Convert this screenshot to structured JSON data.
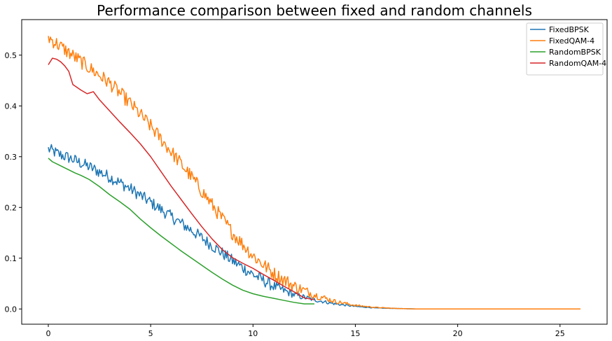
{
  "chart_data": {
    "type": "line",
    "title": "Performance comparison between fixed and random channels",
    "xlabel": "",
    "ylabel": "",
    "xlim": [
      -1.3,
      27.3
    ],
    "ylim": [
      -0.03,
      0.57
    ],
    "xticks": [
      0,
      5,
      10,
      15,
      20,
      25
    ],
    "yticks": [
      0.0,
      0.1,
      0.2,
      0.3,
      0.4,
      0.5
    ],
    "grid": false,
    "legend_position": "top-right",
    "series": [
      {
        "name": "FixedBPSK",
        "color": "#1f77b4",
        "noise": 0.012,
        "x": [
          0,
          0.5,
          1,
          2,
          3,
          4,
          5,
          6,
          7,
          8,
          9,
          10,
          11,
          12,
          13,
          14,
          15,
          16,
          17,
          18,
          20,
          22,
          24,
          26
        ],
        "y": [
          0.315,
          0.305,
          0.298,
          0.28,
          0.26,
          0.237,
          0.21,
          0.182,
          0.155,
          0.125,
          0.095,
          0.068,
          0.045,
          0.028,
          0.018,
          0.01,
          0.005,
          0.002,
          0.001,
          0.0,
          0.0,
          0.0,
          0.0,
          0.0
        ]
      },
      {
        "name": "FixedQAM-4",
        "color": "#ff7f0e",
        "noise": 0.014,
        "x": [
          0,
          0.5,
          1,
          2,
          3,
          4,
          5,
          6,
          7,
          8,
          9,
          10,
          11,
          12,
          13,
          14,
          15,
          16,
          17,
          18,
          20,
          22,
          24,
          26
        ],
        "y": [
          0.535,
          0.52,
          0.505,
          0.475,
          0.445,
          0.405,
          0.36,
          0.31,
          0.26,
          0.205,
          0.15,
          0.105,
          0.07,
          0.045,
          0.028,
          0.015,
          0.007,
          0.003,
          0.001,
          0.0,
          0.0,
          0.0,
          0.0,
          0.0
        ]
      },
      {
        "name": "RandomBPSK",
        "color": "#2ca02c",
        "noise": 0,
        "x": [
          0,
          0.2,
          0.5,
          0.8,
          1,
          1.3,
          1.6,
          2,
          2.5,
          3,
          3.5,
          4,
          4.5,
          5,
          5.5,
          6,
          6.5,
          7,
          7.5,
          8,
          8.5,
          9,
          9.5,
          10,
          10.5,
          11,
          11.5,
          12,
          12.5,
          13
        ],
        "y": [
          0.297,
          0.29,
          0.284,
          0.278,
          0.274,
          0.268,
          0.263,
          0.255,
          0.241,
          0.225,
          0.211,
          0.196,
          0.177,
          0.16,
          0.144,
          0.129,
          0.114,
          0.1,
          0.086,
          0.072,
          0.059,
          0.047,
          0.037,
          0.03,
          0.025,
          0.021,
          0.017,
          0.013,
          0.01,
          0.01
        ]
      },
      {
        "name": "RandomQAM-4",
        "color": "#d62728",
        "noise": 0,
        "x": [
          0,
          0.2,
          0.4,
          0.6,
          0.8,
          1,
          1.2,
          1.6,
          1.9,
          2.2,
          2.5,
          3,
          3.5,
          4,
          4.5,
          5,
          5.5,
          6,
          6.5,
          7,
          7.5,
          8,
          8.5,
          9,
          9.5,
          10,
          10.5,
          11,
          11.5,
          12,
          12.5,
          13
        ],
        "y": [
          0.481,
          0.494,
          0.492,
          0.487,
          0.479,
          0.468,
          0.442,
          0.431,
          0.424,
          0.428,
          0.412,
          0.39,
          0.368,
          0.347,
          0.325,
          0.3,
          0.271,
          0.242,
          0.215,
          0.188,
          0.162,
          0.138,
          0.117,
          0.101,
          0.09,
          0.08,
          0.068,
          0.057,
          0.045,
          0.034,
          0.022,
          0.018
        ]
      }
    ]
  }
}
